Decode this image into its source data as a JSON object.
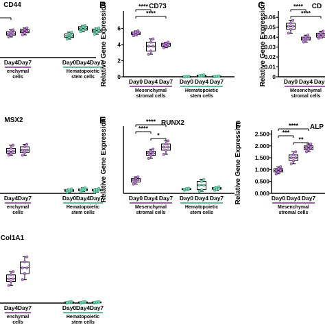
{
  "colors": {
    "msc": "#7b2d8e",
    "msc_fill": "#b58ad0",
    "hsc": "#2aa37a",
    "hsc_fill": "#7fd6b6",
    "axis": "#000000"
  },
  "chart_data": [
    {
      "id": "cd44",
      "panel": "",
      "title": "CD44",
      "type": "box",
      "ylabel": "",
      "yticks": [],
      "ylim": [
        0,
        1.4
      ],
      "groups": [
        {
          "label": "Mesenchymal stromal cells",
          "label_lines": [
            "enchymal",
            "cells"
          ],
          "categories": [
            "Day4",
            "Day7"
          ],
          "color": "msc",
          "boxes": [
            [
              0.78,
              0.85,
              0.9,
              0.98,
              1.05
            ],
            [
              0.86,
              0.94,
              1.0,
              1.06,
              1.12
            ]
          ]
        },
        {
          "label": "Hematopoietic stem cells",
          "label_lines": [
            "Hematopoietic",
            "stem cells"
          ],
          "categories": [
            "Day0",
            "Day4",
            "Day7"
          ],
          "color": "hsc",
          "boxes": [
            [
              0.7,
              0.76,
              0.82,
              0.9,
              0.96
            ],
            [
              0.98,
              1.04,
              1.1,
              1.17,
              1.22
            ],
            [
              0.88,
              0.96,
              1.02,
              1.08,
              1.12
            ]
          ]
        }
      ],
      "sig": [
        {
          "to": 0,
          "text": ""
        }
      ]
    },
    {
      "id": "cd73",
      "panel": "B",
      "title": "CD73",
      "type": "box",
      "ylabel": "Relative Gene Expression",
      "yticks": [
        0,
        2,
        4,
        6
      ],
      "ylim": [
        0,
        8
      ],
      "groups": [
        {
          "label": "Mesenchymal stromal cells",
          "label_lines": [
            "Mesenchymal",
            "stromal cells"
          ],
          "categories": [
            "Day0",
            "Day4",
            "Day7"
          ],
          "color": "msc",
          "boxes": [
            [
              5.1,
              5.25,
              5.4,
              5.55,
              5.7
            ],
            [
              2.8,
              3.2,
              3.8,
              4.3,
              4.7
            ],
            [
              3.6,
              3.8,
              4.0,
              4.15,
              4.3
            ]
          ]
        },
        {
          "label": "Hematopoietic stem cells",
          "label_lines": [
            "Hematopoietic",
            "stem cells"
          ],
          "categories": [
            "Day0",
            "Day4",
            "Day7"
          ],
          "color": "hsc",
          "boxes": [
            [
              0.0,
              0.02,
              0.04,
              0.06,
              0.1
            ],
            [
              0.05,
              0.1,
              0.15,
              0.2,
              0.25
            ],
            [
              0.0,
              0.03,
              0.06,
              0.09,
              0.12
            ]
          ]
        }
      ],
      "sig": [
        {
          "from": 0,
          "to": 1,
          "text": "****"
        },
        {
          "from": 0,
          "to": 2,
          "text": "****"
        }
      ]
    },
    {
      "id": "c_panel",
      "panel": "C",
      "title": "CD",
      "type": "box",
      "ylabel": "Relative Gene Expression",
      "yticks": [
        0.0,
        0.01,
        0.02,
        0.03,
        0.04,
        0.05,
        0.06
      ],
      "ylim": [
        0,
        0.065
      ],
      "groups": [
        {
          "label": "Mesenchymal stromal cells",
          "label_lines": [
            "Mesenchymal",
            "stromal cells"
          ],
          "categories": [
            "Day0",
            "Day4",
            "Day7"
          ],
          "color": "msc",
          "boxes": [
            [
              0.044,
              0.048,
              0.051,
              0.054,
              0.057
            ],
            [
              0.035,
              0.037,
              0.038,
              0.04,
              0.042
            ],
            [
              0.039,
              0.04,
              0.042,
              0.044,
              0.046
            ]
          ]
        }
      ],
      "sig": [
        {
          "from": 0,
          "to": 1,
          "text": "****"
        },
        {
          "from": 0,
          "to": 2,
          "text": "****"
        }
      ]
    },
    {
      "id": "msx2",
      "panel": "",
      "title": "MSX2",
      "type": "box",
      "ylabel": "",
      "yticks": [],
      "ylim": [
        0,
        1.4
      ],
      "groups": [
        {
          "label": "Mesenchymal stromal cells",
          "label_lines": [
            "enchymal",
            "cells"
          ],
          "categories": [
            "Day4",
            "Day7"
          ],
          "color": "msc",
          "boxes": [
            [
              0.95,
              1.0,
              1.05,
              1.12,
              1.2
            ],
            [
              0.95,
              1.02,
              1.08,
              1.16,
              1.22
            ]
          ]
        },
        {
          "label": "Hematopoietic stem cells",
          "label_lines": [
            "Hematopoietic",
            "stem cells"
          ],
          "categories": [
            "Day0",
            "Day4",
            "Day7"
          ],
          "color": "hsc",
          "boxes": [
            [
              0.03,
              0.05,
              0.07,
              0.09,
              0.11
            ],
            [
              0.04,
              0.07,
              0.09,
              0.11,
              0.14
            ],
            [
              0.03,
              0.06,
              0.08,
              0.1,
              0.12
            ]
          ]
        }
      ],
      "sig": []
    },
    {
      "id": "runx2",
      "panel": "E",
      "title": "RUNX2",
      "type": "box",
      "ylabel": "Relative Gene Expression",
      "yticks": [],
      "ylim": [
        0,
        3.2
      ],
      "groups": [
        {
          "label": "Mesenchymal stromal cells",
          "label_lines": [
            "Mesenchymal",
            "stromal cells"
          ],
          "categories": [
            "Day0",
            "Day4",
            "Day7"
          ],
          "color": "msc",
          "boxes": [
            [
              0.45,
              0.55,
              0.65,
              0.72,
              0.8
            ],
            [
              1.7,
              1.85,
              1.95,
              2.05,
              2.15
            ],
            [
              1.9,
              2.1,
              2.25,
              2.4,
              2.55
            ]
          ]
        },
        {
          "label": "Hematopoietic stem cells",
          "label_lines": [
            "Hematopoietic",
            "stem cells"
          ],
          "categories": [
            "Day0",
            "Day4",
            "Day7"
          ],
          "color": "hsc",
          "boxes": [
            [
              0.15,
              0.18,
              0.2,
              0.23,
              0.25
            ],
            [
              0.1,
              0.18,
              0.4,
              0.58,
              0.68
            ],
            [
              0.15,
              0.2,
              0.24,
              0.28,
              0.32
            ]
          ]
        }
      ],
      "sig": [
        {
          "from": 0,
          "to": 2,
          "text": "****"
        },
        {
          "from": 0,
          "to": 1,
          "text": "****"
        },
        {
          "from": 1,
          "to": 2,
          "text": "*"
        }
      ]
    },
    {
      "id": "alp",
      "panel": "F",
      "title": "ALP",
      "type": "box",
      "ylabel": "Relative Gene Expression",
      "yticks": [
        0.0,
        0.5,
        1.0,
        1.5,
        2.0,
        2.5
      ],
      "ytick_labels": [
        "0.000",
        "0.500",
        "1.000",
        "1.500",
        "2.000",
        "2.500"
      ],
      "ylim": [
        0,
        2.6
      ],
      "groups": [
        {
          "label": "Mesenchymal stromal cells",
          "label_lines": [
            "Mesenchymal",
            "stromal cells"
          ],
          "categories": [
            "Day0",
            "Day4",
            "Day7"
          ],
          "color": "msc",
          "boxes": [
            [
              0.82,
              0.9,
              0.97,
              1.04,
              1.12
            ],
            [
              1.25,
              1.38,
              1.5,
              1.62,
              1.75
            ],
            [
              1.75,
              1.84,
              1.92,
              2.0,
              2.08
            ]
          ]
        }
      ],
      "sig": [
        {
          "from": 0,
          "to": 2,
          "text": "****"
        },
        {
          "from": 0,
          "to": 1,
          "text": "***"
        },
        {
          "from": 1,
          "to": 2,
          "text": "**"
        }
      ]
    },
    {
      "id": "col1a1",
      "panel": "",
      "title": "Col1A1",
      "type": "box",
      "ylabel": "",
      "yticks": [],
      "ylim": [
        0,
        1.4
      ],
      "groups": [
        {
          "label": "Mesenchymal stromal cells",
          "label_lines": [
            "enchymal",
            "cells"
          ],
          "categories": [
            "Day4",
            "Day7"
          ],
          "color": "msc",
          "boxes": [
            [
              0.45,
              0.55,
              0.62,
              0.72,
              0.8
            ],
            [
              0.6,
              0.75,
              0.9,
              1.05,
              1.18
            ]
          ]
        },
        {
          "label": "Hematopoietic stem cells",
          "label_lines": [
            "Hematopoietic",
            "stem cells"
          ],
          "categories": [
            "Day0",
            "Day4",
            "Day7"
          ],
          "color": "hsc",
          "boxes": [
            [
              0.0,
              0.01,
              0.02,
              0.03,
              0.04
            ],
            [
              0.0,
              0.01,
              0.02,
              0.03,
              0.04
            ],
            [
              0.0,
              0.01,
              0.02,
              0.03,
              0.04
            ]
          ]
        }
      ],
      "sig": []
    }
  ]
}
